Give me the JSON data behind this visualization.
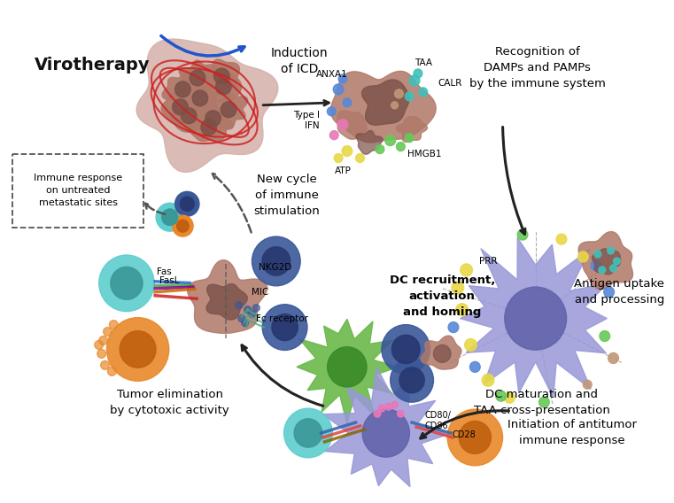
{
  "background_color": "#ffffff",
  "virotherapy_label": "Virotherapy",
  "immune_response_box_text": "Immune response\non untreated\nmetastatic sites",
  "induction_icd_text": "Induction\nof ICD",
  "recognition_text": "Recognition of\nDAMPs and PAMPs\nby the immune system",
  "new_cycle_text": "New cycle\nof immune\nstimulation",
  "dc_recruitment_text": "DC recruitment,\nactivation\nand homing",
  "antigen_uptake_text": "Antigen uptake\nand processing",
  "dc_maturation_text": "DC maturation and\nTAA cross-presentation",
  "initiation_text": "Initiation of antitumor\nimmune response",
  "tumor_elimination_text": "Tumor elimination\nby cytotoxic activity",
  "prr_label": "PRR",
  "tumor_color": "#b07868",
  "tumor_dark": "#7a5048",
  "tumor_light": "#d4b0a8",
  "dc_color": "#9898d8",
  "dc_dark": "#6060a8",
  "dc_mid": "#7878c0",
  "nk_color_teal": "#5ecece",
  "nk_dark_teal": "#3a9898",
  "orange_cell": "#e8882a",
  "orange_dark": "#c06010",
  "green_cell": "#6ab84a",
  "green_dark": "#3a8a28",
  "blue_cell": "#3a5898",
  "blue_dark": "#283870",
  "brown_small": "#a07060",
  "arrow_color": "#222222",
  "damp_dot_colors": {
    "blue": "#5888d8",
    "teal": "#40c8c0",
    "pink": "#e878b8",
    "yellow": "#e8d848",
    "green": "#68c858",
    "brown": "#c09878"
  }
}
